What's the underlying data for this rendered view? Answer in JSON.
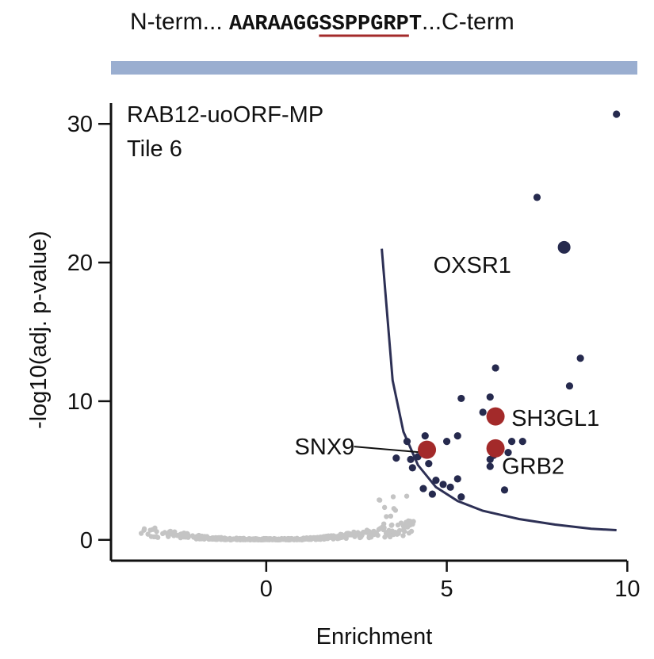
{
  "sequence": {
    "prefix": "N-term... ",
    "segments": [
      {
        "text": "AARAAGG",
        "color": "#111111"
      },
      {
        "text": "SSP",
        "color": "#111111"
      },
      {
        "text": "P",
        "color": "#a32a2a"
      },
      {
        "text": "GR",
        "color": "#111111"
      },
      {
        "text": "P",
        "color": "#a32a2a"
      },
      {
        "text": "T",
        "color": "#111111"
      }
    ],
    "suffix": "...C-term",
    "underlined_motif": "SSPPGRP",
    "underline_color": "#a32a2a",
    "tile_bar_color": "#9aaed0"
  },
  "chart_data": {
    "type": "scatter",
    "title": "RAB12-uoORF-MP",
    "subtitle": "Tile 6",
    "xlabel": "Enrichment",
    "ylabel": "-log10(adj. p-value)",
    "xlim": [
      -4.3,
      10.3
    ],
    "ylim": [
      -1.5,
      31.5
    ],
    "xticks": [
      0,
      5,
      10
    ],
    "yticks": [
      0,
      10,
      20,
      30
    ],
    "grid": false,
    "colors": {
      "background_points": "#c4c4c4",
      "significant_points": "#262a4e",
      "highlight_points": "#a32a2a",
      "threshold_curve": "#2d3055"
    },
    "threshold_curve": {
      "x": [
        3.2,
        3.5,
        3.8,
        4.2,
        4.7,
        5.3,
        6,
        7,
        8,
        9,
        9.7
      ],
      "y": [
        21,
        11.5,
        7.8,
        5.4,
        3.8,
        2.8,
        2.1,
        1.5,
        1.1,
        0.8,
        0.7
      ]
    },
    "significant": {
      "x": [
        9.7,
        7.5,
        8.7,
        6.35,
        8.4,
        5.4,
        6.2,
        6.0,
        5.3,
        4.4,
        3.9,
        4.0,
        4.2,
        5.0,
        7.1,
        6.8,
        6.7,
        6.3,
        6.2,
        4.5,
        4.7,
        4.9,
        4.6,
        5.1,
        5.3,
        5.4,
        6.6,
        3.6,
        4.05,
        4.35,
        6.2
      ],
      "y": [
        30.7,
        24.7,
        13.1,
        12.4,
        11.1,
        10.2,
        10.3,
        9.2,
        7.5,
        7.5,
        7.1,
        5.8,
        6.0,
        7.1,
        7.1,
        7.1,
        6.3,
        6.1,
        5.8,
        5.5,
        4.3,
        4.0,
        3.3,
        3.8,
        4.4,
        3.1,
        3.6,
        5.9,
        5.2,
        3.7,
        5.3
      ]
    },
    "highlighted": [
      {
        "name": "OXSR1",
        "x": 8.25,
        "y": 21.1
      },
      {
        "name": "SH3GL1",
        "x": 6.35,
        "y": 8.9
      },
      {
        "name": "GRB2",
        "x": 6.35,
        "y": 6.6
      },
      {
        "name": "SNX9",
        "x": 4.45,
        "y": 6.5
      }
    ],
    "nonsignificant_count": 420
  }
}
